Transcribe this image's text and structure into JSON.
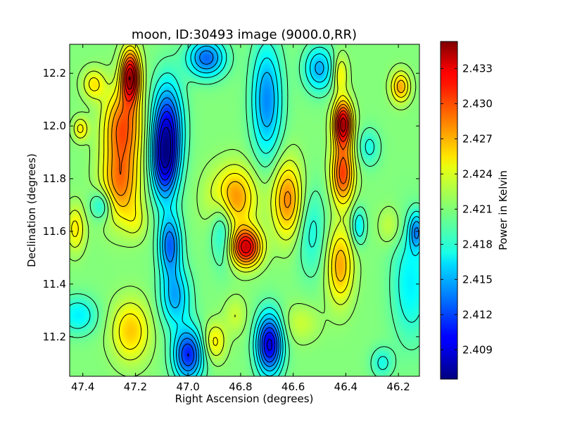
{
  "chart_data": {
    "type": "heatmap",
    "title": "moon, ID:30493 image (9000.0,RR)",
    "xlabel": "Right Ascension (degrees)",
    "ylabel": "Declination (degrees)",
    "colorbar_label": "Power in Kelvin",
    "colormap": "jet",
    "contours": true,
    "xlim": [
      47.45,
      46.12
    ],
    "ylim": [
      11.05,
      12.31
    ],
    "x_ticks": [
      47.4,
      47.2,
      47.0,
      46.8,
      46.6,
      46.4,
      46.2
    ],
    "x_tick_labels": [
      "47.4",
      "47.2",
      "47.0",
      "46.8",
      "46.6",
      "46.4",
      "46.2"
    ],
    "y_ticks": [
      11.2,
      11.4,
      11.6,
      11.8,
      12.0,
      12.2
    ],
    "y_tick_labels": [
      "11.2",
      "11.4",
      "11.6",
      "11.8",
      "12.0",
      "12.2"
    ],
    "value_range": [
      2.4065,
      2.4353
    ],
    "colorbar_ticks": [
      2.409,
      2.412,
      2.415,
      2.418,
      2.421,
      2.424,
      2.427,
      2.43,
      2.433
    ],
    "colorbar_tick_labels": [
      "2.409",
      "2.412",
      "2.415",
      "2.418",
      "2.421",
      "2.424",
      "2.427",
      "2.430",
      "2.433"
    ],
    "background_level": 2.421,
    "features": [
      {
        "ra": 47.22,
        "dec": 12.19,
        "ra_sigma": 0.025,
        "dec_sigma": 0.07,
        "amp": 0.013
      },
      {
        "ra": 47.25,
        "dec": 12.0,
        "ra_sigma": 0.05,
        "dec_sigma": 0.1,
        "amp": 0.008
      },
      {
        "ra": 47.26,
        "dec": 11.78,
        "ra_sigma": 0.05,
        "dec_sigma": 0.1,
        "amp": 0.007
      },
      {
        "ra": 47.2,
        "dec": 11.64,
        "ra_sigma": 0.03,
        "dec_sigma": 0.05,
        "amp": 0.002
      },
      {
        "ra": 47.41,
        "dec": 11.99,
        "ra_sigma": 0.02,
        "dec_sigma": 0.03,
        "amp": 0.004
      },
      {
        "ra": 47.36,
        "dec": 12.16,
        "ra_sigma": 0.03,
        "dec_sigma": 0.04,
        "amp": 0.004
      },
      {
        "ra": 47.43,
        "dec": 11.61,
        "ra_sigma": 0.025,
        "dec_sigma": 0.06,
        "amp": 0.004
      },
      {
        "ra": 47.22,
        "dec": 11.22,
        "ra_sigma": 0.05,
        "dec_sigma": 0.08,
        "amp": 0.005
      },
      {
        "ra": 47.42,
        "dec": 11.28,
        "ra_sigma": 0.05,
        "dec_sigma": 0.05,
        "amp": -0.004
      },
      {
        "ra": 47.33,
        "dec": 11.7,
        "ra_sigma": 0.03,
        "dec_sigma": 0.04,
        "amp": -0.004
      },
      {
        "ra": 47.08,
        "dec": 12.0,
        "ra_sigma": 0.04,
        "dec_sigma": 0.12,
        "amp": -0.01
      },
      {
        "ra": 47.09,
        "dec": 11.85,
        "ra_sigma": 0.035,
        "dec_sigma": 0.1,
        "amp": -0.009
      },
      {
        "ra": 47.07,
        "dec": 11.55,
        "ra_sigma": 0.03,
        "dec_sigma": 0.08,
        "amp": -0.008
      },
      {
        "ra": 47.05,
        "dec": 11.35,
        "ra_sigma": 0.04,
        "dec_sigma": 0.08,
        "amp": -0.006
      },
      {
        "ra": 47.0,
        "dec": 11.13,
        "ra_sigma": 0.04,
        "dec_sigma": 0.07,
        "amp": -0.01
      },
      {
        "ra": 46.93,
        "dec": 12.26,
        "ra_sigma": 0.05,
        "dec_sigma": 0.05,
        "amp": -0.008
      },
      {
        "ra": 46.87,
        "dec": 11.62,
        "ra_sigma": 0.03,
        "dec_sigma": 0.1,
        "amp": -0.004
      },
      {
        "ra": 46.78,
        "dec": 11.54,
        "ra_sigma": 0.04,
        "dec_sigma": 0.05,
        "amp": 0.012
      },
      {
        "ra": 46.83,
        "dec": 11.73,
        "ra_sigma": 0.06,
        "dec_sigma": 0.08,
        "amp": 0.007
      },
      {
        "ra": 46.82,
        "dec": 11.28,
        "ra_sigma": 0.03,
        "dec_sigma": 0.05,
        "amp": 0.002
      },
      {
        "ra": 46.9,
        "dec": 11.18,
        "ra_sigma": 0.03,
        "dec_sigma": 0.05,
        "amp": 0.004
      },
      {
        "ra": 46.7,
        "dec": 12.1,
        "ra_sigma": 0.04,
        "dec_sigma": 0.15,
        "amp": -0.007
      },
      {
        "ra": 46.69,
        "dec": 11.17,
        "ra_sigma": 0.035,
        "dec_sigma": 0.08,
        "amp": -0.012
      },
      {
        "ra": 46.62,
        "dec": 11.72,
        "ra_sigma": 0.04,
        "dec_sigma": 0.1,
        "amp": 0.007
      },
      {
        "ra": 46.53,
        "dec": 11.6,
        "ra_sigma": 0.04,
        "dec_sigma": 0.12,
        "amp": -0.003
      },
      {
        "ra": 46.57,
        "dec": 11.25,
        "ra_sigma": 0.05,
        "dec_sigma": 0.05,
        "amp": 0.002
      },
      {
        "ra": 46.5,
        "dec": 12.22,
        "ra_sigma": 0.04,
        "dec_sigma": 0.06,
        "amp": -0.006
      },
      {
        "ra": 46.41,
        "dec": 12.01,
        "ra_sigma": 0.025,
        "dec_sigma": 0.06,
        "amp": 0.013
      },
      {
        "ra": 46.41,
        "dec": 11.82,
        "ra_sigma": 0.03,
        "dec_sigma": 0.08,
        "amp": 0.009
      },
      {
        "ra": 46.42,
        "dec": 12.2,
        "ra_sigma": 0.02,
        "dec_sigma": 0.05,
        "amp": 0.004
      },
      {
        "ra": 46.42,
        "dec": 11.47,
        "ra_sigma": 0.035,
        "dec_sigma": 0.1,
        "amp": 0.006
      },
      {
        "ra": 46.35,
        "dec": 11.62,
        "ra_sigma": 0.02,
        "dec_sigma": 0.05,
        "amp": -0.004
      },
      {
        "ra": 46.31,
        "dec": 11.92,
        "ra_sigma": 0.03,
        "dec_sigma": 0.05,
        "amp": -0.003
      },
      {
        "ra": 46.19,
        "dec": 12.15,
        "ra_sigma": 0.025,
        "dec_sigma": 0.04,
        "amp": 0.006
      },
      {
        "ra": 46.15,
        "dec": 11.4,
        "ra_sigma": 0.05,
        "dec_sigma": 0.15,
        "amp": -0.004
      },
      {
        "ra": 46.23,
        "dec": 11.62,
        "ra_sigma": 0.03,
        "dec_sigma": 0.05,
        "amp": 0.002
      },
      {
        "ra": 46.26,
        "dec": 11.1,
        "ra_sigma": 0.03,
        "dec_sigma": 0.04,
        "amp": -0.003
      },
      {
        "ra": 46.13,
        "dec": 11.6,
        "ra_sigma": 0.02,
        "dec_sigma": 0.05,
        "amp": -0.006
      }
    ]
  }
}
